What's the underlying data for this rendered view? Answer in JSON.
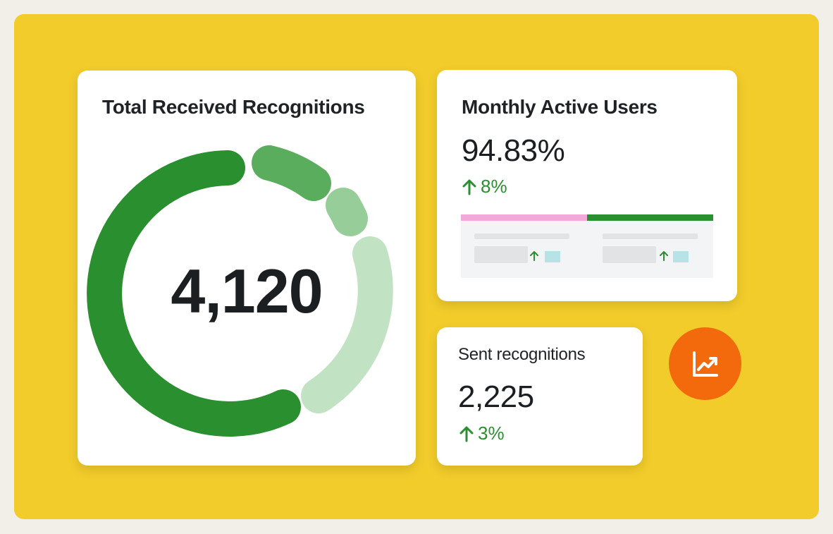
{
  "total_card": {
    "title": "Total Received Recognitions",
    "value": "4,120"
  },
  "mau_card": {
    "title": "Monthly Active Users",
    "value": "94.83%",
    "delta": "8%"
  },
  "sent_card": {
    "title": "Sent recognitions",
    "value": "2,225",
    "delta": "3%"
  },
  "icons": {
    "delta_arrow": "arrow-up-icon",
    "fab": "trending-chart-icon"
  },
  "colors": {
    "background_panel": "#f2cc2b",
    "green_dark": "#2a8f2f",
    "green_medium": "#5aad5d",
    "green_light": "#97cd98",
    "green_pale": "#c2e3c3",
    "pink": "#f2a8d8",
    "orange": "#f26a0c"
  }
}
